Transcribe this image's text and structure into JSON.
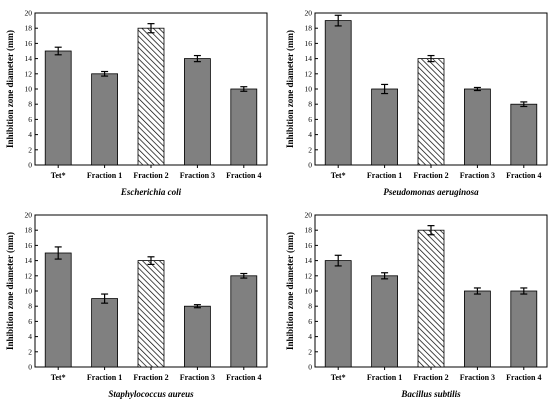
{
  "chart_data": [
    {
      "type": "bar",
      "title": "Escherichia coli",
      "ylabel": "Inhibition zone diameter (mm)",
      "xlabel": "",
      "categories": [
        "Tet*",
        "Fraction 1",
        "Fraction 2",
        "Fraction 3",
        "Fraction 4"
      ],
      "values": [
        15,
        12,
        18,
        14,
        10
      ],
      "errors": [
        0.5,
        0.3,
        0.6,
        0.4,
        0.3
      ],
      "hatched_index": 2,
      "ylim": [
        0,
        20
      ],
      "yticks": [
        0,
        2,
        4,
        6,
        8,
        10,
        12,
        14,
        16,
        18,
        20
      ]
    },
    {
      "type": "bar",
      "title": "Pseudomonas aeruginosa",
      "ylabel": "Inhibition zone diameter (mm)",
      "xlabel": "",
      "categories": [
        "Tet*",
        "Fraction 1",
        "Fraction 2",
        "Fraction 3",
        "Fraction 4"
      ],
      "values": [
        19,
        10,
        14,
        10,
        8
      ],
      "errors": [
        0.7,
        0.6,
        0.4,
        0.2,
        0.3
      ],
      "hatched_index": 2,
      "ylim": [
        0,
        20
      ],
      "yticks": [
        0,
        2,
        4,
        6,
        8,
        10,
        12,
        14,
        16,
        18,
        20
      ]
    },
    {
      "type": "bar",
      "title": "Staphylococcus aureus",
      "ylabel": "Inhibition zone diameter (mm)",
      "xlabel": "",
      "categories": [
        "Tet*",
        "Fraction 1",
        "Fraction 2",
        "Fraction 3",
        "Fraction 4"
      ],
      "values": [
        15,
        9,
        14,
        8,
        12
      ],
      "errors": [
        0.8,
        0.6,
        0.5,
        0.2,
        0.3
      ],
      "hatched_index": 2,
      "ylim": [
        0,
        20
      ],
      "yticks": [
        0,
        2,
        4,
        6,
        8,
        10,
        12,
        14,
        16,
        18,
        20
      ]
    },
    {
      "type": "bar",
      "title": "Bacillus subtilis",
      "ylabel": "Inhibition zone diameter (mm)",
      "xlabel": "",
      "categories": [
        "Tet*",
        "Fraction 1",
        "Fraction 2",
        "Fraction 3",
        "Fraction 4"
      ],
      "values": [
        14,
        12,
        18,
        10,
        10
      ],
      "errors": [
        0.7,
        0.4,
        0.6,
        0.4,
        0.4
      ],
      "hatched_index": 2,
      "ylim": [
        0,
        20
      ],
      "yticks": [
        0,
        2,
        4,
        6,
        8,
        10,
        12,
        14,
        16,
        18,
        20
      ]
    }
  ],
  "colors": {
    "bar_fill": "#808080",
    "hatch_fill": "#ffffff",
    "stroke": "#000000"
  }
}
